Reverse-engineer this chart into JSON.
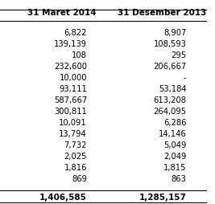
{
  "col1_header": "31 Maret 2014",
  "col2_header": "31 Desember 2013",
  "rows": [
    [
      "6,822",
      "8,907"
    ],
    [
      "139,139",
      "108,593"
    ],
    [
      "108",
      "295"
    ],
    [
      "232,600",
      "206,667"
    ],
    [
      "10,000",
      "-"
    ],
    [
      "93,111",
      "53,184"
    ],
    [
      "587,667",
      "613,208"
    ],
    [
      "300,811",
      "264,095"
    ],
    [
      "10,091",
      "6,286"
    ],
    [
      "13,794",
      "14,146"
    ],
    [
      "7,732",
      "5,049"
    ],
    [
      "2,025",
      "2,049"
    ],
    [
      "1,816",
      "1,815"
    ],
    [
      "869",
      "863"
    ]
  ],
  "total_row": [
    "1,406,585",
    "1,285,157"
  ],
  "bg_color": "#ffffff",
  "text_color": "#000000",
  "line_color": "#000000",
  "font_size": 7.2,
  "header_font_size": 7.5
}
